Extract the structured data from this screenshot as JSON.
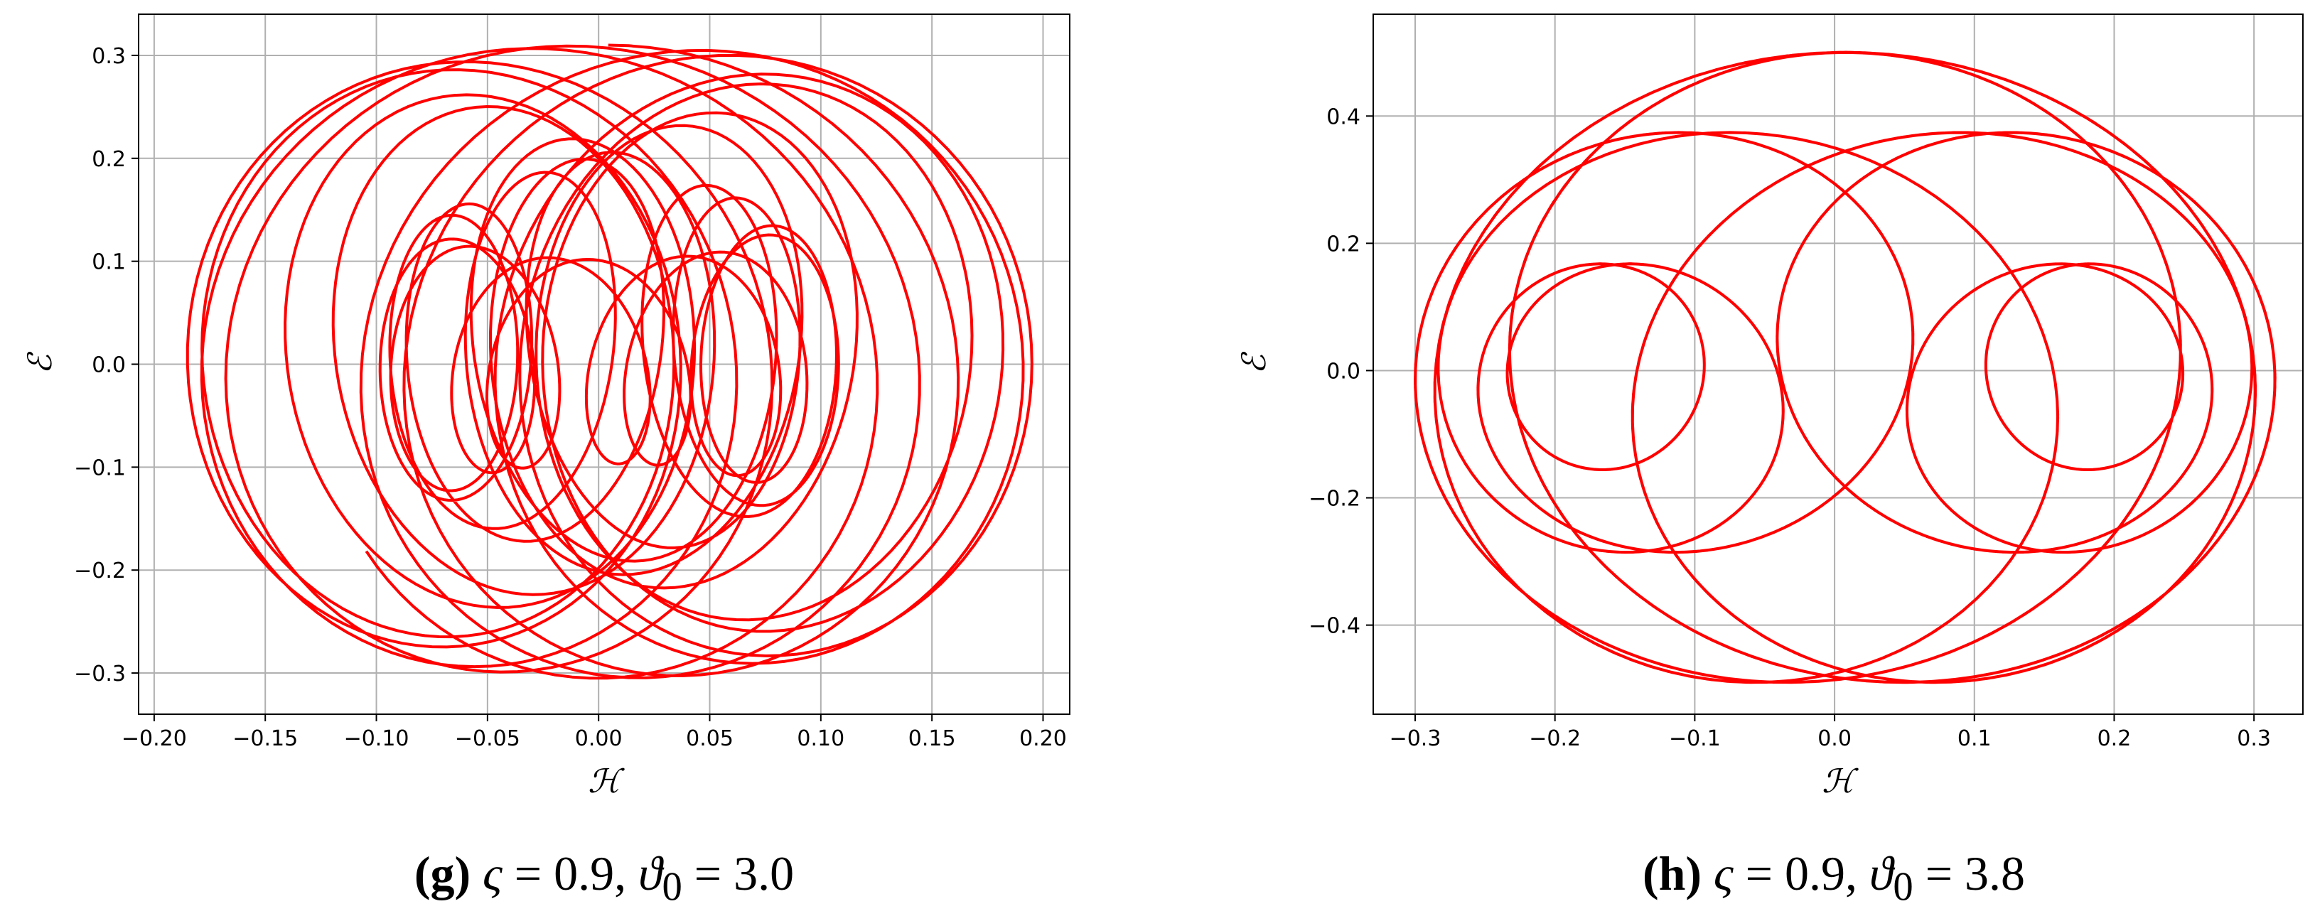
{
  "chart_data": [
    {
      "type": "line",
      "panel": "g",
      "caption": {
        "letter": "(g)",
        "sym1": "ς",
        "eq1": " = 0.9, ",
        "sym2": "ϑ",
        "sub2": "0",
        "eq2": " = 3.0"
      },
      "xlabel": "ℋ",
      "ylabel": "ℰ",
      "xlim": [
        -0.207,
        0.212
      ],
      "ylim": [
        -0.34,
        0.34
      ],
      "xticks": [
        -0.2,
        -0.15,
        -0.1,
        -0.05,
        0.0,
        0.05,
        0.1,
        0.15,
        0.2
      ],
      "xtick_labels": [
        "−0.20",
        "−0.15",
        "−0.10",
        "−0.05",
        "0.00",
        "0.05",
        "0.10",
        "0.15",
        "0.20"
      ],
      "yticks": [
        -0.3,
        -0.2,
        -0.1,
        0.0,
        0.1,
        0.2,
        0.3
      ],
      "ytick_labels": [
        "−0.3",
        "−0.2",
        "−0.1",
        "0.0",
        "0.1",
        "0.2",
        "0.3"
      ],
      "grid": true,
      "line_color": "#ff0000",
      "x_range": [
        -0.185,
        0.195
      ],
      "y_range": [
        -0.305,
        0.31
      ]
    },
    {
      "type": "line",
      "panel": "h",
      "caption": {
        "letter": "(h)",
        "sym1": "ς",
        "eq1": " = 0.9, ",
        "sym2": "ϑ",
        "sub2": "0",
        "eq2": " = 3.8"
      },
      "xlabel": "ℋ",
      "ylabel": "ℰ",
      "xlim": [
        -0.33,
        0.335
      ],
      "ylim": [
        -0.54,
        0.56
      ],
      "xticks": [
        -0.3,
        -0.2,
        -0.1,
        0.0,
        0.1,
        0.2,
        0.3
      ],
      "xtick_labels": [
        "−0.3",
        "−0.2",
        "−0.1",
        "0.0",
        "0.1",
        "0.2",
        "0.3"
      ],
      "yticks": [
        -0.4,
        -0.2,
        0.0,
        0.2,
        0.4
      ],
      "ytick_labels": [
        "−0.4",
        "−0.2",
        "0.0",
        "0.2",
        "0.4"
      ],
      "grid": true,
      "line_color": "#ff0000",
      "x_range": [
        -0.3,
        0.315
      ],
      "y_range": [
        -0.49,
        0.5
      ]
    }
  ]
}
